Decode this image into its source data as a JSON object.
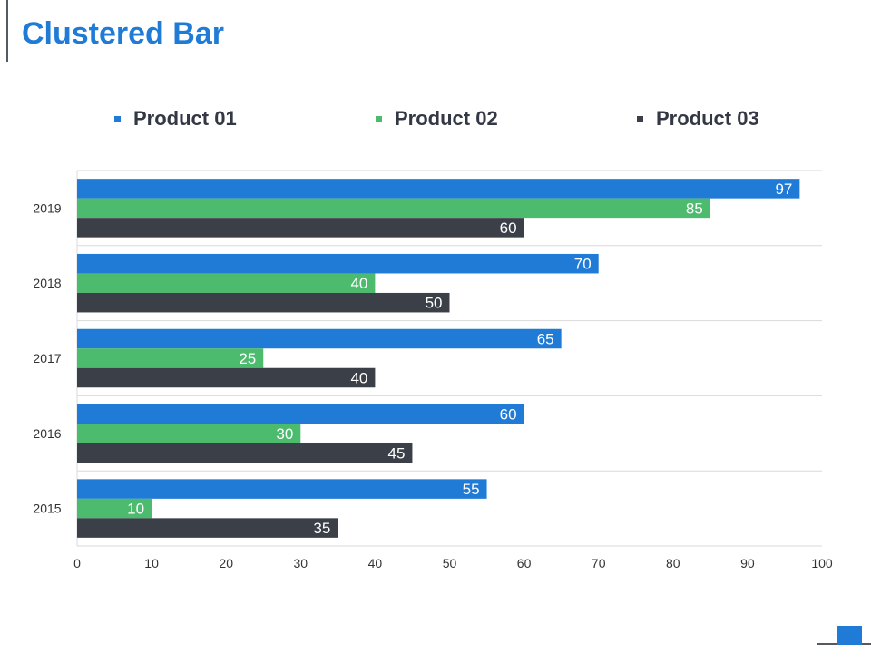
{
  "title": "Clustered Bar",
  "chart_data": {
    "type": "bar",
    "orientation": "horizontal",
    "title": "Clustered Bar",
    "categories": [
      "2019",
      "2018",
      "2017",
      "2016",
      "2015"
    ],
    "series": [
      {
        "name": "Product 01",
        "color": "#1f7bd6",
        "values": [
          97,
          70,
          65,
          60,
          55
        ]
      },
      {
        "name": "Product 02",
        "color": "#4dbb6d",
        "values": [
          85,
          40,
          25,
          30,
          10
        ]
      },
      {
        "name": "Product 03",
        "color": "#3b3f48",
        "values": [
          60,
          50,
          40,
          45,
          35
        ]
      }
    ],
    "xlim": [
      0,
      100
    ],
    "xticks": [
      0,
      10,
      20,
      30,
      40,
      50,
      60,
      70,
      80,
      90,
      100
    ],
    "xlabel": "",
    "ylabel": "",
    "legend": "top",
    "grid": true
  }
}
